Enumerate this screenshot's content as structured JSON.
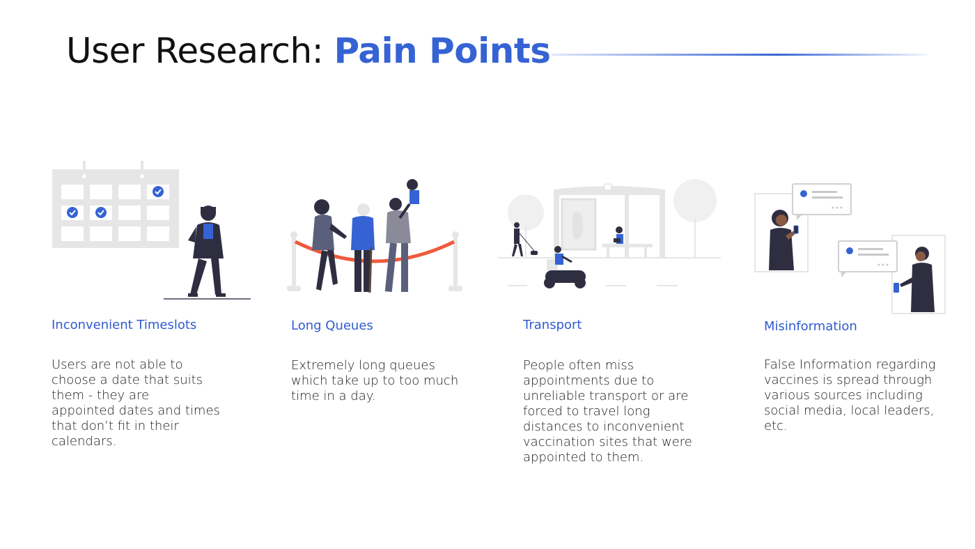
{
  "title": {
    "prefix": "User Research: ",
    "accent": "Pain Points"
  },
  "cards": [
    {
      "title": "Inconvenient Timeslots",
      "lines": [
        "Users are not able to",
        "choose a date that suits",
        "them - they are",
        "appointed dates and times",
        "that don’t fit in their",
        "calendars."
      ],
      "illustration": "calendar-person-illustration"
    },
    {
      "title": "Long Queues",
      "lines": [
        "Extremely long queues",
        "which take up to too much",
        "time in a day."
      ],
      "illustration": "queue-illustration"
    },
    {
      "title": "Transport",
      "lines": [
        "People often miss",
        "appointments due to",
        "unreliable transport or are",
        "forced to travel long",
        "distances to inconvenient",
        "vaccination sites that were",
        "appointed to them."
      ],
      "illustration": "bus-stop-illustration"
    },
    {
      "title": "Misinformation",
      "lines": [
        "False Information regarding",
        "vaccines is spread through",
        "various sources including",
        "social media, local leaders,",
        "etc."
      ],
      "illustration": "messaging-illustration"
    }
  ],
  "colors": {
    "accent": "#3563d4",
    "rope": "#ef5a3c",
    "dark": "#2f2e41",
    "grey": "#e6e6e6"
  }
}
